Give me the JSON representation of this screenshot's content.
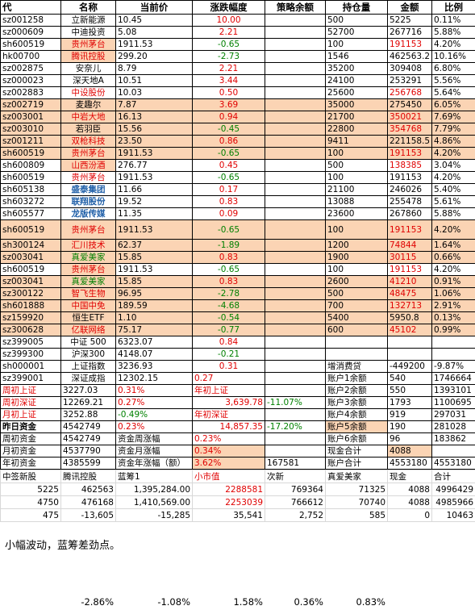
{
  "table": {
    "header": [
      "代",
      "名称",
      "当前价",
      "涨跌幅度",
      "策略余额",
      "持仓量",
      "金额",
      "比例"
    ],
    "rows": [
      [
        "sz001258",
        "立新能源",
        "10.45",
        "10.00",
        null,
        "500",
        "5225",
        "0.11%"
      ],
      [
        "sz000609",
        "中迪投资",
        "5.08",
        "2.21",
        null,
        "52700",
        "267716",
        "5.88%"
      ],
      [
        "sh600519",
        "贵州茅台",
        "1911.53",
        "-0.65",
        null,
        "100",
        "191153",
        "4.20%"
      ],
      [
        "hk00700",
        "腾讯控股",
        "299.20",
        "-2.73",
        null,
        "1546",
        "462563.2",
        "10.16%"
      ],
      [
        "sz002875",
        "安奈儿",
        "8.79",
        "2.21",
        null,
        "35200",
        "309408",
        "6.80%"
      ],
      [
        "sz000023",
        "深天地A",
        "10.51",
        "3.44",
        null,
        "24100",
        "253291",
        "5.56%"
      ],
      [
        "sz002883",
        "中设股份",
        "10.03",
        "0.50",
        null,
        "25600",
        "256768",
        "5.64%"
      ],
      [
        "sz002719",
        "麦趣尔",
        "7.87",
        "3.69",
        null,
        "35000",
        "275450",
        "6.05%"
      ],
      [
        "sz003001",
        "中岩大地",
        "16.13",
        "0.94",
        null,
        "21700",
        "350021",
        "7.69%"
      ],
      [
        "sz003010",
        "若羽臣",
        "15.56",
        "-0.45",
        null,
        "22800",
        "354768",
        "7.79%"
      ],
      [
        "sz001211",
        "双枪科技",
        "23.50",
        "0.86",
        null,
        "9411",
        "221158.5",
        "4.86%"
      ],
      [
        "sh600519",
        "贵州茅台",
        "1911.53",
        "-0.65",
        null,
        "100",
        "191153",
        "4.20%"
      ],
      [
        "sh600809",
        "山西汾酒",
        "276.77",
        "0.45",
        null,
        "500",
        "138385",
        "3.04%"
      ],
      [
        "sh600519",
        "贵州茅台",
        "1911.53",
        "-0.65",
        null,
        "100",
        "191153",
        "4.20%"
      ],
      [
        "sh605138",
        "盛泰集团",
        "11.66",
        "0.17",
        null,
        "21100",
        "246026",
        "5.40%"
      ],
      [
        "sh603272",
        "联翔股份",
        "19.52",
        "0.83",
        null,
        "13088",
        "255478",
        "5.61%"
      ],
      [
        "sh605577",
        "龙版传媒",
        "11.35",
        "0.09",
        null,
        "23600",
        "267860",
        "5.88%"
      ],
      [
        "sh600519",
        "贵州茅台",
        "1911.53",
        "-0.65",
        null,
        "100",
        "191153",
        "4.20%"
      ],
      [
        "sh300124",
        "汇川技术",
        "62.37",
        "-1.89",
        null,
        "1200",
        "74844",
        "1.64%"
      ],
      [
        "sz003041",
        "真爱美家",
        "15.85",
        "0.83",
        null,
        "1900",
        "30115",
        "0.66%"
      ],
      [
        "sh600519",
        "贵州茅台",
        "1911.53",
        "-0.65",
        null,
        "100",
        "191153",
        "4.20%"
      ],
      [
        "sz003041",
        "真爱美家",
        "15.85",
        "0.83",
        null,
        "2600",
        "41210",
        "0.91%"
      ],
      [
        "sz300122",
        "智飞生物",
        "96.95",
        "-2.78",
        null,
        "500",
        "48475",
        "1.06%"
      ],
      [
        "sh601888",
        "中国中免",
        "189.59",
        "-4.68",
        null,
        "700",
        "132713",
        "2.91%"
      ],
      [
        "sz159920",
        "恒生ETF",
        "1.10",
        "-0.54",
        null,
        "5400",
        "5950.8",
        "0.13%"
      ],
      [
        "sz300628",
        "亿联网络",
        "75.17",
        "-0.77",
        null,
        "600",
        "45102",
        "0.99%"
      ],
      [
        "sz399005",
        "中证 500",
        "6323.07",
        "0.84",
        null,
        null,
        null,
        null
      ],
      [
        "sz399300",
        "沪深300",
        "4148.07",
        "-0.21",
        null,
        null,
        null,
        null
      ],
      [
        "sh000001",
        "上证指数",
        "3236.93",
        "0.31",
        null,
        "增消费贷",
        "-449200",
        "-9.87%"
      ],
      [
        "sz399001",
        "深证成指",
        "12302.15",
        "0.27",
        null,
        "账户1余额",
        "540",
        "1746664"
      ],
      [
        "周初上证",
        "3227.03",
        "0.31%",
        "年初上证",
        null,
        "账户2余额",
        "550",
        "1393101"
      ],
      [
        "周初深证",
        "12269.21",
        "0.27%",
        "3,639.78",
        "-11.07%",
        "账户3余额",
        "1793",
        "1100695"
      ],
      [
        "月初上证",
        "3252.88",
        "-0.49%",
        "年初深证",
        null,
        "账户4余额",
        "919",
        "297031"
      ],
      [
        "昨日资金",
        "4542749",
        "0.23%",
        "14,857.35",
        "-17.20%",
        "账户5余额",
        "190",
        "281028"
      ],
      [
        "周初资金",
        "4542749",
        "资金周涨幅",
        "0.23%",
        null,
        "账户6余额",
        "96",
        "183862"
      ],
      [
        "月初资金",
        "4537790",
        "资金月涨幅",
        "0.34%",
        null,
        "现金合计",
        "4088",
        null
      ],
      [
        "年初资金",
        "4385599",
        "资金年涨幅（额）",
        "3.62%",
        "167581",
        "账户合计",
        "4553180",
        "4553180"
      ]
    ]
  },
  "bottom_table": {
    "header": [
      "中签新股",
      "腾讯控股",
      "蓝筹1",
      "小市值",
      "次新",
      "真爱美家",
      "现金",
      "合计"
    ],
    "rows": [
      [
        "5225",
        "462563",
        "1,395,284.00",
        "2288581",
        "769364",
        "71325",
        "4088",
        "4996429"
      ],
      [
        "4750",
        "476168",
        "1,410,569.00",
        "2253039",
        "766612",
        "70740",
        "4088",
        "4985966"
      ],
      [
        "475",
        "-13,605",
        "-15,285",
        "35,541",
        "2,752",
        "585",
        "0",
        "10463"
      ]
    ]
  },
  "note": "小幅波动，蓝筹差劲点。",
  "footer": [
    "-2.86%",
    "-1.08%",
    "1.58%",
    "0.36%",
    "0.83%"
  ]
}
